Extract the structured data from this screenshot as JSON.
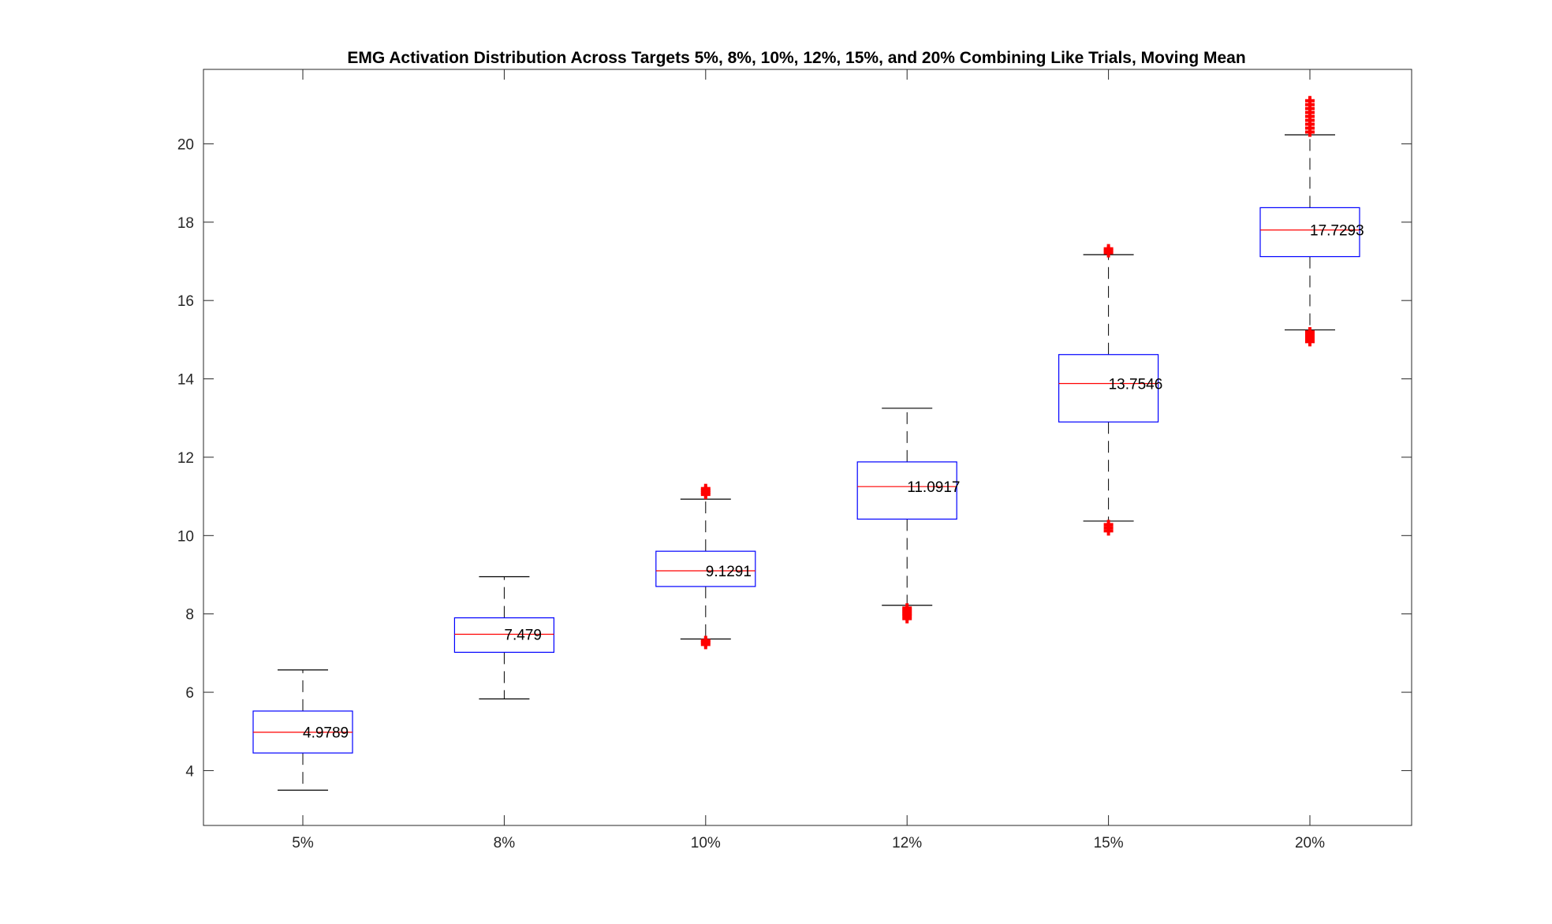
{
  "chart_data": {
    "type": "box",
    "title": "EMG Activation Distribution Across Targets 5%, 8%, 10%, 12%, 15%, and 20% Combining Like Trials, Moving Mean",
    "xlabel": "",
    "ylabel": "",
    "categories": [
      "5%",
      "8%",
      "10%",
      "12%",
      "15%",
      "20%"
    ],
    "ylim": [
      2.6,
      21.9
    ],
    "yticks": [
      4,
      6,
      8,
      10,
      12,
      14,
      16,
      18,
      20
    ],
    "ytick_labels": [
      "4",
      "6",
      "8",
      "10",
      "12",
      "14",
      "16",
      "18",
      "20"
    ],
    "grid": false,
    "boxes": [
      {
        "category": "5%",
        "whisker_low": 3.5,
        "q1": 4.45,
        "median": 4.98,
        "q3": 5.52,
        "whisker_high": 6.57,
        "outliers": [],
        "label": "4.9789"
      },
      {
        "category": "8%",
        "whisker_low": 5.83,
        "q1": 7.02,
        "median": 7.48,
        "q3": 7.9,
        "whisker_high": 8.95,
        "outliers": [],
        "label": "7.479"
      },
      {
        "category": "10%",
        "whisker_low": 7.36,
        "q1": 8.7,
        "median": 9.1,
        "q3": 9.6,
        "whisker_high": 10.93,
        "outliers": [
          7.22,
          7.28,
          7.32,
          11.05,
          11.1,
          11.15,
          11.2
        ],
        "label": "9.1291"
      },
      {
        "category": "12%",
        "whisker_low": 8.22,
        "q1": 10.42,
        "median": 11.25,
        "q3": 11.88,
        "whisker_high": 13.25,
        "outliers": [
          7.88,
          7.95,
          8.0,
          8.05,
          8.1,
          8.15
        ],
        "label": "11.0917"
      },
      {
        "category": "15%",
        "whisker_low": 10.37,
        "q1": 12.9,
        "median": 13.88,
        "q3": 14.62,
        "whisker_high": 17.17,
        "outliers": [
          10.12,
          10.2,
          10.28,
          17.22,
          17.27,
          17.32
        ],
        "label": "13.7546"
      },
      {
        "category": "20%",
        "whisker_low": 15.25,
        "q1": 17.12,
        "median": 17.8,
        "q3": 18.37,
        "whisker_high": 20.23,
        "outliers": [
          14.95,
          15.0,
          15.05,
          15.1,
          15.15,
          15.2,
          20.3,
          20.4,
          20.5,
          20.6,
          20.7,
          20.8,
          20.9,
          21.0,
          21.1
        ],
        "label": "17.7293"
      }
    ],
    "colors": {
      "box": "#0000ff",
      "median": "#ff0000",
      "whisker": "#000000",
      "outlier": "#ff0000",
      "axis": "#262626"
    }
  }
}
